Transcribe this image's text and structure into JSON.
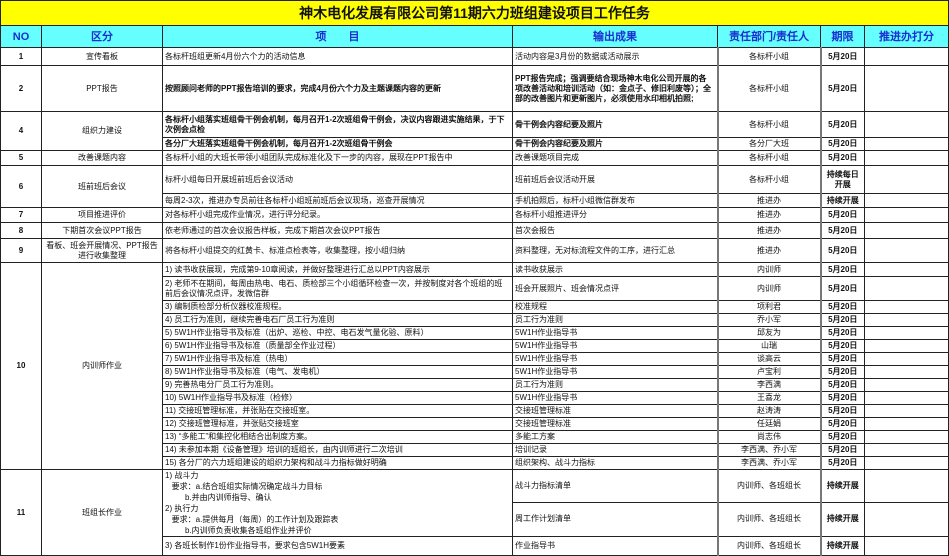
{
  "title": "神木电化发展有限公司第11期六力班组建设项目工作任务",
  "headers": {
    "no": "NO",
    "category": "区分",
    "item": "项　　目",
    "output": "输出成果",
    "owner": "责任部门/责任人",
    "deadline": "期限",
    "score": "推进办打分"
  },
  "colors": {
    "title_bg": "#ffff00",
    "header_bg": "#66ffff",
    "header_text": "#1a2fcf"
  },
  "rows": [
    {
      "no": "1",
      "category": "宣传看板",
      "items": [
        {
          "text": "各标杆班组更新4月份六个力的活动信息",
          "output": "活动内容是3月份的数据或活动展示",
          "owner": "各标杆小组",
          "deadline": "5月20日",
          "score": ""
        }
      ]
    },
    {
      "no": "2",
      "category": "PPT报告",
      "items": [
        {
          "text": "按照顾问老师的PPT报告培训的要求，完成4月份六个力及主题课题内容的更新",
          "output": "PPT报告完成；强调要结合现场神木电化公司开展的各项改善活动和培训活动（如：金点子、修旧利废等）；全部的改善图片和更新图片，必须使用水印相机拍照;",
          "owner": "各标杆小组",
          "deadline": "5月20日",
          "score": "",
          "bold": true
        }
      ]
    },
    {
      "no": "4",
      "category": "组织力建设",
      "items": [
        {
          "text": "各标杆小组落实班组骨干例会机制，每月召开1-2次班组骨干例会，决议内容跟进实施结果，于下次例会点检",
          "output": "骨干例会内容纪要及照片",
          "owner": "各标杆小组",
          "deadline": "5月20日",
          "score": "",
          "bold": true
        },
        {
          "text": "各分厂大班落实班组骨干例会机制，每月召开1-2次班组骨干例会",
          "output": "骨干例会内容纪要及照片",
          "owner": "各分厂大班",
          "deadline": "5月20日",
          "score": "",
          "bold": true
        }
      ]
    },
    {
      "no": "5",
      "category": "改善课题内容",
      "items": [
        {
          "text": "各标杆小组的大班长带领小组团队完成标准化及下一步的内容，展现在PPT报告中",
          "output": "改善课题项目完成",
          "owner": "各标杆小组",
          "deadline": "5月20日",
          "score": ""
        }
      ]
    },
    {
      "no": "6",
      "category": "班前班后会议",
      "items": [
        {
          "text": "标杆小组每日开展班前班后会议活动",
          "output": "班前班后会议活动开展",
          "owner": "各标杆小组",
          "deadline": "持续每日开展",
          "score": ""
        },
        {
          "text": "每周2-3次，推进办专员前往各标杆小组班前班后会议现场，巡查开展情况",
          "output": "手机拍照后，标杆小组微信群发布",
          "owner": "推进办",
          "deadline": "持续开展",
          "score": ""
        }
      ]
    },
    {
      "no": "7",
      "category": "项目推进评价",
      "items": [
        {
          "text": "对各标杆小组完成作业情况，进行评分纪录。",
          "output": "各标杆小组推进评分",
          "owner": "推进办",
          "deadline": "5月20日",
          "score": ""
        }
      ]
    },
    {
      "no": "8",
      "category": "下期首次会议PPT报告",
      "items": [
        {
          "text": "依老师通过的首次会议报告样板，完成下期首次会议PPT报告",
          "output": "首次会报告",
          "owner": "推进办",
          "deadline": "5月20日",
          "score": ""
        }
      ]
    },
    {
      "no": "9",
      "category": "看板、班会开展情况、PPT报告进行收集整理",
      "items": [
        {
          "text": "将各标杆小组提交的红黄卡、标准点检表等，收集整理，按小组归纳",
          "output": "资料整理，无对标流程文件的工序，进行汇总",
          "owner": "推进办",
          "deadline": "5月20日",
          "score": ""
        }
      ]
    },
    {
      "no": "10",
      "category": "内训师作业",
      "items": [
        {
          "text": "1) 读书收获展现，完成第9-10章阅读，并做好整理进行汇总以PPT内容展示",
          "output": "读书收获展示",
          "owner": "内训师",
          "deadline": "5月20日",
          "score": ""
        },
        {
          "text": "2) 老师不在期间，每周由热电、电石、质检部三个小组循环检查一次，并按制度对各个班组的班前后会议情况点评，发微信群",
          "output": "班会开展照片、班会情况点评",
          "owner": "内训师",
          "deadline": "5月20日",
          "score": ""
        },
        {
          "text": "3) 编制质检部分析仪器校准规程。",
          "output": "校准规程",
          "owner": "项利君",
          "deadline": "5月20日",
          "score": ""
        },
        {
          "text": "4) 员工行为准则，继续完善电石厂员工行为准则",
          "output": "员工行为准则",
          "owner": "乔小军",
          "deadline": "5月20日",
          "score": ""
        },
        {
          "text": "5) 5W1H作业指导书及标准（出炉、巡检、中控、电石发气量化验、原料）",
          "output": "5W1H作业指导书",
          "owner": "邱友为",
          "deadline": "5月20日",
          "score": ""
        },
        {
          "text": "6) 5W1H作业指导书及标准（质量部全作业过程）",
          "output": "5W1H作业指导书",
          "owner": "山瑞",
          "deadline": "5月20日",
          "score": ""
        },
        {
          "text": "7) 5W1H作业指导书及标准（热电）",
          "output": "5W1H作业指导书",
          "owner": "谈高云",
          "deadline": "5月20日",
          "score": ""
        },
        {
          "text": "8) 5W1H作业指导书及标准（电气、发电机）",
          "output": "5W1H作业指导书",
          "owner": "卢宝利",
          "deadline": "5月20日",
          "score": ""
        },
        {
          "text": "9) 完善热电分厂员工行为准则。",
          "output": "员工行为准则",
          "owner": "李西满",
          "deadline": "5月20日",
          "score": ""
        },
        {
          "text": "10) 5W1H作业指导书及标准（检修）",
          "output": "5W1H作业指导书",
          "owner": "王喜龙",
          "deadline": "5月20日",
          "score": ""
        },
        {
          "text": "11) 交接班管理标准，并张贴在交接班室。",
          "output": "交接班管理标准",
          "owner": "赵涛涛",
          "deadline": "5月20日",
          "score": ""
        },
        {
          "text": "12) 交接班管理标准，并张贴交接班室",
          "output": "交接班管理标准",
          "owner": "任廷娟",
          "deadline": "5月20日",
          "score": ""
        },
        {
          "text": "13) “多能工”和集控化相结合出制度方案。",
          "output": "多能工方案",
          "owner": "尚志伟",
          "deadline": "5月20日",
          "score": ""
        },
        {
          "text": "14) 未参加本期《设备管理》培训的班组长，由内训师进行二次培训",
          "output": "培训记录",
          "owner": "李西满、乔小军",
          "deadline": "5月20日",
          "score": ""
        },
        {
          "text": "15) 各分厂的六力班组建设的组织力架构和战斗力指标做好明确",
          "output": "组织架构、战斗力指标",
          "owner": "李西满、乔小军",
          "deadline": "5月20日",
          "score": ""
        }
      ]
    },
    {
      "no": "11",
      "category": "班组长作业",
      "items": [
        {
          "lines": [
            "1) 战斗力",
            "   要求：a.结合班组实际情况确定战斗力目标",
            "         b.并由内训师指导、确认",
            "2) 执行力",
            "   要求：a.提供每月（每周）的工作计划及跟踪表",
            "         b.内训师负责收集各班组作业并评价"
          ],
          "output": "战斗力指标清单",
          "owner": "内训师、各班组长",
          "deadline": "持续开展",
          "score": ""
        },
        {
          "merged": true,
          "output": "周工作计划清单",
          "owner": "内训师、各班组长",
          "deadline": "持续开展",
          "score": ""
        },
        {
          "text": "3) 各班长制作1份作业指导书，要求包含5W1H要素",
          "output": "作业指导书",
          "owner": "内训师、各班组长",
          "deadline": "持续开展",
          "score": ""
        }
      ]
    }
  ]
}
